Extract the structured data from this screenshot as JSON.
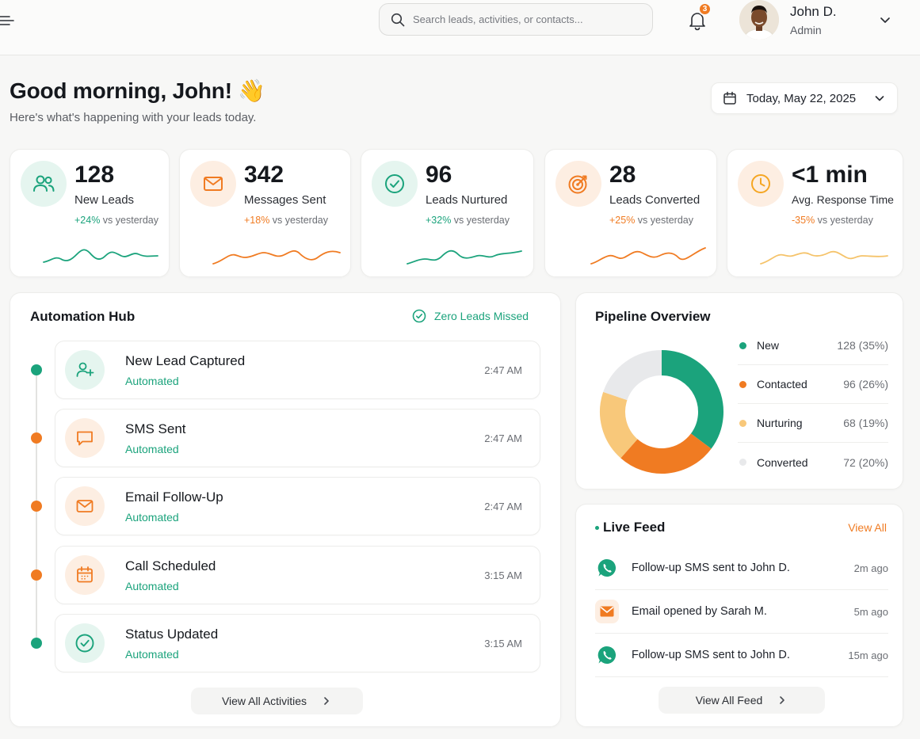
{
  "colors": {
    "green": "#1ba37c",
    "orange": "#f07b22",
    "yellow": "#f8c87a",
    "grey": "#e8e9eb",
    "red_negative": "#f07b22"
  },
  "header": {
    "search_placeholder": "Search leads, activities, or contacts...",
    "notification_count": "3",
    "user_name": "John D.",
    "user_role": "Admin"
  },
  "greeting": {
    "title": "Good morning, John! 👋",
    "subtitle": "Here's what's happening with your leads today."
  },
  "date_picker": {
    "label": "Today, May 22, 2025"
  },
  "stats": [
    {
      "value": "128",
      "label": "New Leads",
      "change_pct": "+24%",
      "change_suffix": " vs yesterday",
      "icon": "users-icon",
      "trend_color": "#1ba37c"
    },
    {
      "value": "342",
      "label": "Messages Sent",
      "change_pct": "+18%",
      "change_suffix": " vs yesterday",
      "icon": "mail-icon",
      "trend_color": "#f07b22"
    },
    {
      "value": "96",
      "label": "Leads Nurtured",
      "change_pct": "+32%",
      "change_suffix": " vs yesterday",
      "icon": "check-circle-icon",
      "trend_color": "#1ba37c"
    },
    {
      "value": "28",
      "label": "Leads Converted",
      "change_pct": "+25%",
      "change_suffix": " vs yesterday",
      "icon": "target-icon",
      "trend_color": "#f07b22"
    },
    {
      "value": "<1 min",
      "label": "Avg. Response Time",
      "change_pct": "-35%",
      "change_suffix": " vs yesterday",
      "icon": "clock-icon",
      "trend_color": "#f5a623"
    }
  ],
  "automation_hub": {
    "title": "Automation Hub",
    "badge": "Zero Leads Missed",
    "activities": [
      {
        "title": "New Lead Captured",
        "status": "Automated",
        "time": "2:47 AM",
        "icon": "user-plus-icon"
      },
      {
        "title": "SMS Sent",
        "status": "Automated",
        "time": "2:47 AM",
        "icon": "message-icon"
      },
      {
        "title": "Email Follow-Up",
        "status": "Automated",
        "time": "2:47 AM",
        "icon": "mail-icon"
      },
      {
        "title": "Call Scheduled",
        "status": "Automated",
        "time": "3:15 AM",
        "icon": "calendar-icon"
      },
      {
        "title": "Status Updated",
        "status": "Automated",
        "time": "3:15 AM",
        "icon": "check-circle-icon"
      }
    ],
    "view_all_label": "View All Activities"
  },
  "pipeline": {
    "title": "Pipeline Overview",
    "items": [
      {
        "name": "New",
        "value": "128 (35%)",
        "color": "#1ba37c"
      },
      {
        "name": "Contacted",
        "value": "96 (26%)",
        "color": "#f07b22"
      },
      {
        "name": "Nurturing",
        "value": "68 (19%)",
        "color": "#f8c87a"
      },
      {
        "name": "Converted",
        "value": "72 (20%)",
        "color": "#e8e9eb"
      }
    ]
  },
  "chart_data": {
    "type": "pie",
    "categories": [
      "New",
      "Contacted",
      "Nurturing",
      "Converted"
    ],
    "values": [
      128,
      96,
      68,
      72
    ],
    "percentages": [
      35,
      26,
      19,
      20
    ],
    "colors": [
      "#1ba37c",
      "#f07b22",
      "#f8c87a",
      "#e8e9eb"
    ],
    "title": "Pipeline Overview"
  },
  "live_feed": {
    "title": "Live Feed",
    "view_all": "View All",
    "items": [
      {
        "text": "Follow-up SMS sent to John D.",
        "time": "2m ago",
        "icon": "whatsapp-icon"
      },
      {
        "text": "Email opened by Sarah M.",
        "time": "5m ago",
        "icon": "mail-icon"
      },
      {
        "text": "Follow-up SMS sent to John D.",
        "time": "15m ago",
        "icon": "whatsapp-icon"
      }
    ],
    "view_all_feed": "View All Feed"
  }
}
